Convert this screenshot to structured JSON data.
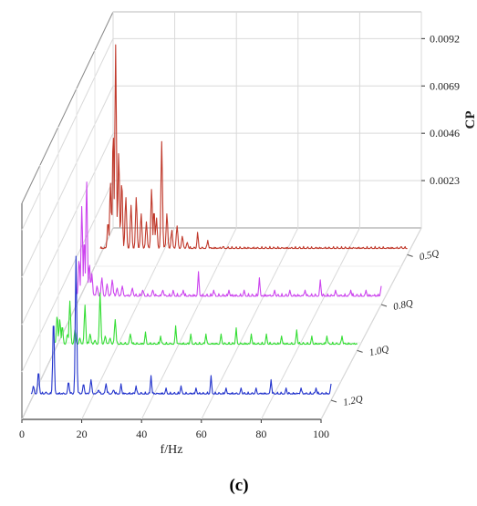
{
  "chart_data": {
    "type": "line",
    "projection": "3d-waterfall",
    "panel_label": "(c)",
    "xlabel": "f/Hz",
    "zlabel": "CP",
    "xlim": [
      0,
      100
    ],
    "x_ticks": [
      0,
      20,
      40,
      60,
      80,
      100
    ],
    "zlim": [
      0,
      0.0105
    ],
    "z_ticks": [
      0.0023,
      0.0046,
      0.0069,
      0.0092
    ],
    "z_tick_labels": [
      "0.0023",
      "0.0046",
      "0.0069",
      "0.0092"
    ],
    "grid": true,
    "series": [
      {
        "name": "0.5Q",
        "color": "#c0392b",
        "baseline": 0.0003,
        "peaks": [
          [
            2.5,
            0.0016
          ],
          [
            3.3,
            0.0035
          ],
          [
            4.2,
            0.006
          ],
          [
            5.0,
            0.0102
          ],
          [
            6.0,
            0.005
          ],
          [
            7.0,
            0.0036
          ],
          [
            8.3,
            0.0028
          ],
          [
            10.0,
            0.0024
          ],
          [
            11.7,
            0.0028
          ],
          [
            13.3,
            0.002
          ],
          [
            15.0,
            0.0016
          ],
          [
            16.7,
            0.0032
          ],
          [
            17.5,
            0.0022
          ],
          [
            18.3,
            0.0018
          ],
          [
            20.0,
            0.0055
          ],
          [
            21.7,
            0.002
          ],
          [
            23.3,
            0.0012
          ],
          [
            25.0,
            0.0014
          ],
          [
            26.7,
            0.0009
          ],
          [
            28.3,
            0.0006
          ],
          [
            31.7,
            0.0011
          ],
          [
            35.0,
            0.0007
          ],
          [
            40.0,
            0.0004
          ],
          [
            50.0,
            0.0003
          ],
          [
            60.0,
            0.0003
          ],
          [
            70.0,
            0.0003
          ],
          [
            80.0,
            0.0003
          ],
          [
            90.0,
            0.0003
          ],
          [
            98.0,
            0.0004
          ]
        ]
      },
      {
        "name": "0.8Q",
        "color": "#cc44ee",
        "baseline": 0.0004,
        "peaks": [
          [
            0.8,
            0.0022
          ],
          [
            1.7,
            0.0048
          ],
          [
            2.5,
            0.0032
          ],
          [
            3.3,
            0.006
          ],
          [
            4.2,
            0.002
          ],
          [
            5.0,
            0.0015
          ],
          [
            6.7,
            0.0009
          ],
          [
            8.3,
            0.0013
          ],
          [
            10.0,
            0.001
          ],
          [
            11.7,
            0.0012
          ],
          [
            13.3,
            0.0008
          ],
          [
            15.0,
            0.0009
          ],
          [
            18.3,
            0.0008
          ],
          [
            21.7,
            0.0007
          ],
          [
            25.0,
            0.0007
          ],
          [
            28.3,
            0.0007
          ],
          [
            31.7,
            0.0007
          ],
          [
            35.0,
            0.0007
          ],
          [
            40.0,
            0.0016
          ],
          [
            45.0,
            0.0007
          ],
          [
            50.0,
            0.0007
          ],
          [
            55.0,
            0.0007
          ],
          [
            60.0,
            0.0013
          ],
          [
            65.0,
            0.0007
          ],
          [
            70.0,
            0.0007
          ],
          [
            75.0,
            0.0007
          ],
          [
            80.0,
            0.0012
          ],
          [
            85.0,
            0.0007
          ],
          [
            90.0,
            0.0007
          ],
          [
            95.0,
            0.0007
          ],
          [
            100.0,
            0.0009
          ]
        ]
      },
      {
        "name": "1.0Q",
        "color": "#33dd33",
        "baseline": 0.0003,
        "peaks": [
          [
            0.8,
            0.0017
          ],
          [
            1.7,
            0.0015
          ],
          [
            2.5,
            0.0012
          ],
          [
            4.2,
            0.0008
          ],
          [
            5.0,
            0.0024
          ],
          [
            6.7,
            0.001
          ],
          [
            8.3,
            0.0006
          ],
          [
            10.0,
            0.0022
          ],
          [
            11.7,
            0.0008
          ],
          [
            13.3,
            0.0005
          ],
          [
            15.0,
            0.0028
          ],
          [
            16.7,
            0.0007
          ],
          [
            18.3,
            0.0006
          ],
          [
            20.0,
            0.0015
          ],
          [
            25.0,
            0.0008
          ],
          [
            30.0,
            0.0009
          ],
          [
            35.0,
            0.0007
          ],
          [
            40.0,
            0.0012
          ],
          [
            45.0,
            0.0008
          ],
          [
            50.0,
            0.0008
          ],
          [
            55.0,
            0.0008
          ],
          [
            60.0,
            0.0011
          ],
          [
            65.0,
            0.0008
          ],
          [
            70.0,
            0.0008
          ],
          [
            75.0,
            0.0007
          ],
          [
            80.0,
            0.001
          ],
          [
            85.0,
            0.0007
          ],
          [
            90.0,
            0.0007
          ],
          [
            95.0,
            0.0007
          ]
        ]
      },
      {
        "name": "1.2Q",
        "color": "#2233cc",
        "baseline": 0.0003,
        "peaks": [
          [
            0.8,
            0.0007
          ],
          [
            2.5,
            0.0014
          ],
          [
            5.0,
            0.0004
          ],
          [
            7.5,
            0.004
          ],
          [
            10.0,
            0.0003
          ],
          [
            12.5,
            0.0009
          ],
          [
            15.0,
            0.007
          ],
          [
            17.5,
            0.0008
          ],
          [
            20.0,
            0.001
          ],
          [
            22.5,
            0.0005
          ],
          [
            25.0,
            0.0008
          ],
          [
            27.5,
            0.0005
          ],
          [
            30.0,
            0.0008
          ],
          [
            35.0,
            0.0007
          ],
          [
            40.0,
            0.0012
          ],
          [
            45.0,
            0.0006
          ],
          [
            50.0,
            0.0007
          ],
          [
            55.0,
            0.0006
          ],
          [
            60.0,
            0.0012
          ],
          [
            65.0,
            0.0006
          ],
          [
            70.0,
            0.0006
          ],
          [
            75.0,
            0.0006
          ],
          [
            80.0,
            0.001
          ],
          [
            85.0,
            0.0006
          ],
          [
            90.0,
            0.0006
          ],
          [
            95.0,
            0.0006
          ],
          [
            100.0,
            0.0008
          ]
        ]
      }
    ]
  }
}
